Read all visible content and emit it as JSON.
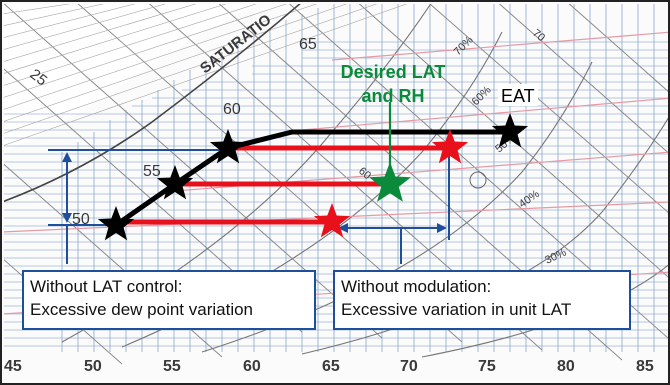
{
  "chart": {
    "saturation_label": "SATURATIO",
    "wet_bulb_labels": [
      "25",
      "65",
      "60",
      "55",
      "50"
    ],
    "db_ticks": [
      "45",
      "50",
      "55",
      "60",
      "65",
      "70",
      "75",
      "80",
      "85"
    ],
    "rh_labels": [
      "70%",
      "60%",
      "50%",
      "40%",
      "30%"
    ],
    "minor_labels": [
      "70",
      "60"
    ]
  },
  "labels": {
    "desired_line1": "Desired LAT",
    "desired_line2": "and RH",
    "eat": "EAT"
  },
  "callouts": {
    "lat_control": {
      "line1": "Without LAT control:",
      "line2": "Excessive dew point variation"
    },
    "modulation": {
      "line1": "Without modulation:",
      "line2": "Excessive variation in unit LAT"
    }
  },
  "colors": {
    "process_line": "#000000",
    "red_star": "#e8101a",
    "green_star": "#0a8a3a",
    "blue_bracket": "#1f4f9a",
    "desired_text": "#0a8a3a"
  }
}
